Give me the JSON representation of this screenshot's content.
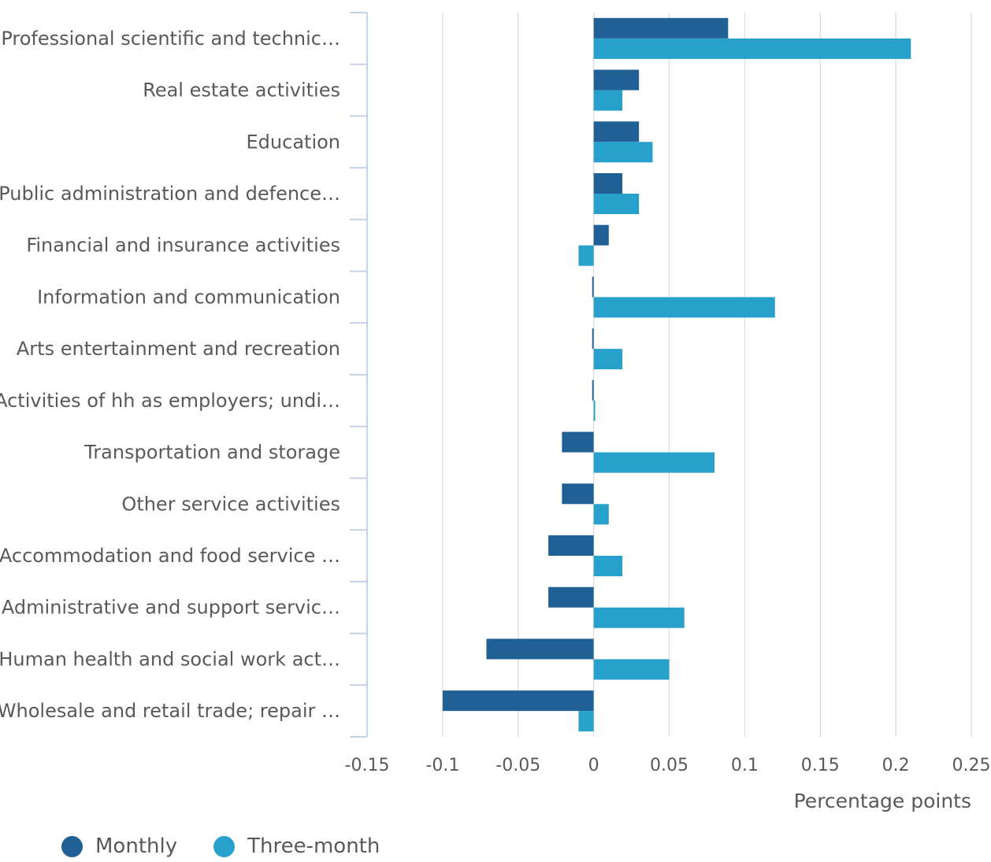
{
  "chart_data": {
    "type": "bar",
    "orientation": "horizontal",
    "categories": [
      "Professional scientific and technic…",
      "Real estate activities",
      "Education",
      "Public administration and defence…",
      "Financial and insurance activities",
      "Information and communication",
      "Arts entertainment and recreation",
      "Activities of hh as employers; undi…",
      "Transportation and storage",
      "Other service activities",
      "Accommodation and food service …",
      "Administrative and support servic…",
      "Human health and social work act…",
      "Wholesale and retail trade; repair …"
    ],
    "series": [
      {
        "name": "Monthly",
        "color": "#206095",
        "values": [
          0.089,
          0.03,
          0.03,
          0.019,
          0.01,
          -0.001,
          -0.001,
          -0.001,
          -0.021,
          -0.021,
          -0.03,
          -0.03,
          -0.071,
          -0.1
        ]
      },
      {
        "name": "Three-month",
        "color": "#27a0cc",
        "values": [
          0.21,
          0.019,
          0.039,
          0.03,
          -0.01,
          0.12,
          0.019,
          0.001,
          0.08,
          0.01,
          0.019,
          0.06,
          0.05,
          -0.01
        ]
      }
    ],
    "xlim": [
      -0.15,
      0.25
    ],
    "xticks": [
      "-0.15",
      "-0.1",
      "-0.05",
      "0",
      "0.05",
      "0.1",
      "0.15",
      "0.2",
      "0.25"
    ],
    "xlabel": "Percentage points",
    "ylabel": "",
    "title": "",
    "grid": true,
    "legend": "bottom-left"
  }
}
